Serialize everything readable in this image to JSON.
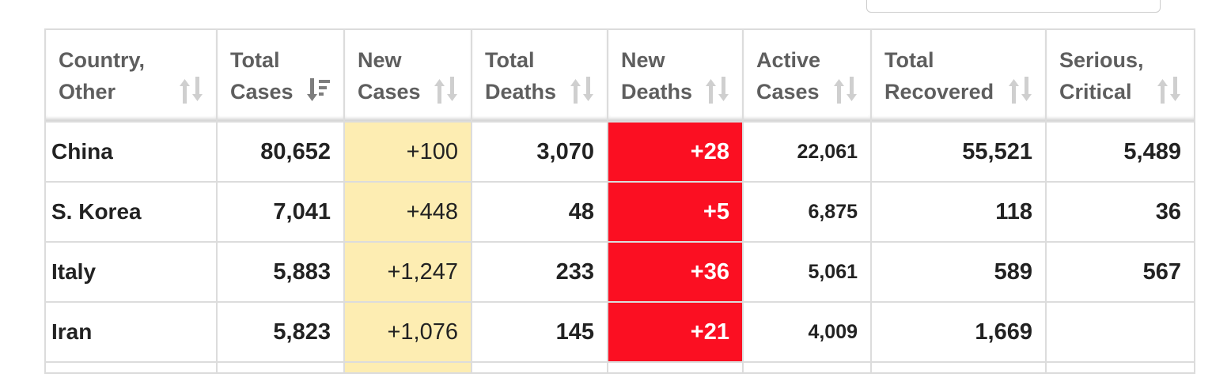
{
  "search": {
    "placeholder": ""
  },
  "table": {
    "headers": [
      {
        "line1": "Country,",
        "line2": "Other",
        "sort": "unsorted"
      },
      {
        "line1": "Total",
        "line2": "Cases",
        "sort": "descending"
      },
      {
        "line1": "New",
        "line2": "Cases",
        "sort": "unsorted"
      },
      {
        "line1": "Total",
        "line2": "Deaths",
        "sort": "unsorted"
      },
      {
        "line1": "New",
        "line2": "Deaths",
        "sort": "unsorted"
      },
      {
        "line1": "Active",
        "line2": "Cases",
        "sort": "unsorted"
      },
      {
        "line1": "Total",
        "line2": "Recovered",
        "sort": "unsorted"
      },
      {
        "line1": "Serious,",
        "line2": "Critical",
        "sort": "unsorted"
      }
    ],
    "rows": [
      {
        "country": "China",
        "total_cases": "80,652",
        "new_cases": "+100",
        "total_deaths": "3,070",
        "new_deaths": "+28",
        "active_cases": "22,061",
        "total_recovered": "55,521",
        "serious_critical": "5,489"
      },
      {
        "country": "S. Korea",
        "total_cases": "7,041",
        "new_cases": "+448",
        "total_deaths": "48",
        "new_deaths": "+5",
        "active_cases": "6,875",
        "total_recovered": "118",
        "serious_critical": "36"
      },
      {
        "country": "Italy",
        "total_cases": "5,883",
        "new_cases": "+1,247",
        "total_deaths": "233",
        "new_deaths": "+36",
        "active_cases": "5,061",
        "total_recovered": "589",
        "serious_critical": "567"
      },
      {
        "country": "Iran",
        "total_cases": "5,823",
        "new_cases": "+1,076",
        "total_deaths": "145",
        "new_deaths": "+21",
        "active_cases": "4,009",
        "total_recovered": "1,669",
        "serious_critical": ""
      }
    ]
  },
  "colors": {
    "new_cases_bg": "#fdedb2",
    "new_deaths_bg": "#fb0f22",
    "header_text": "#5e5e5e",
    "border": "#dcdcdc"
  }
}
